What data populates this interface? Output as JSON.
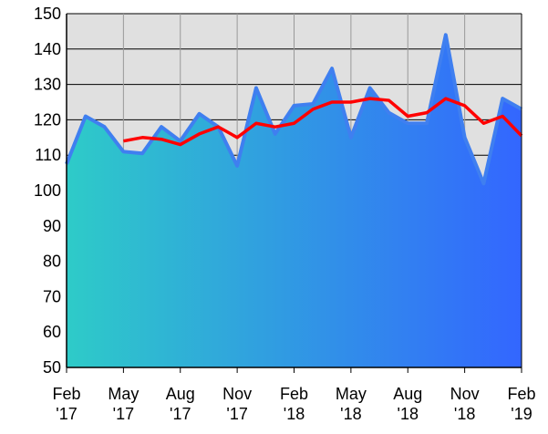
{
  "chart_data": {
    "type": "area",
    "categories": [
      "Feb '17",
      null,
      null,
      "May '17",
      null,
      null,
      "Aug '17",
      null,
      null,
      "Nov '17",
      null,
      null,
      "Feb '18",
      null,
      null,
      "May '18",
      null,
      null,
      "Aug '18",
      null,
      null,
      "Nov '18",
      null,
      null,
      "Feb '19"
    ],
    "series": [
      {
        "color": "#3f7ff0",
        "fill_colors": [
          "#2ecbc8",
          "#3366ff"
        ],
        "values": [
          107.5,
          121,
          118,
          111,
          110.5,
          118,
          114,
          121.7,
          118,
          107,
          129,
          116,
          124,
          124.5,
          134.5,
          115,
          129,
          122,
          119,
          119,
          144,
          115,
          102,
          126,
          123
        ]
      },
      {
        "color": "#ff0000",
        "values": [
          null,
          null,
          null,
          114,
          115,
          114.5,
          113,
          116,
          118,
          115,
          119,
          118,
          119,
          123,
          125,
          125,
          126,
          125.5,
          121,
          122,
          126,
          124,
          119,
          121,
          115.5
        ]
      }
    ],
    "ylim": [
      50,
      150
    ],
    "yticks": [
      50,
      60,
      70,
      80,
      90,
      100,
      110,
      120,
      130,
      140,
      150
    ],
    "grid": true,
    "background": "#e0e0e0"
  }
}
